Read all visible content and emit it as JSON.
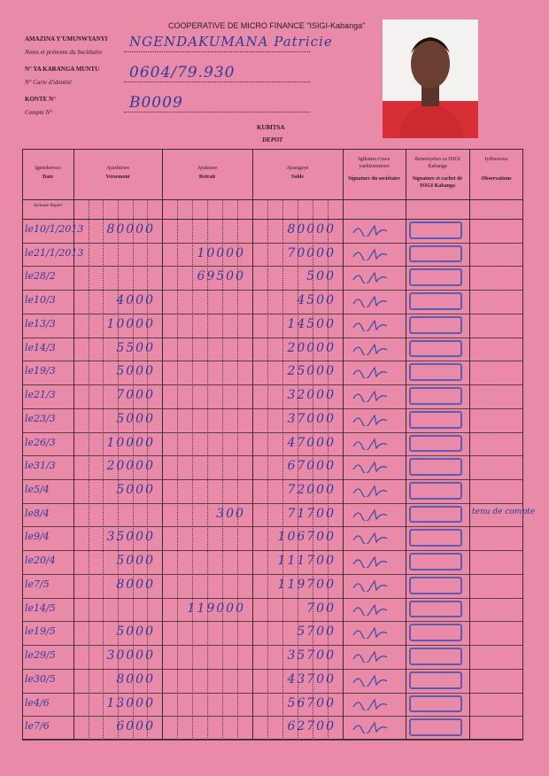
{
  "header": {
    "title": "COOPERATIVE DE MICRO FINANCE \"ISIGI-Kabanga\"",
    "fields": [
      {
        "label": "AMAZINA Y'UMUNWYANYI",
        "sublabel": "Noms et prénoms du Sociétaire",
        "value": "NGENDAKUMANA Patricie"
      },
      {
        "label": "N° YA KARANGA MUNTU",
        "sublabel": "N° Carte d'identité",
        "value": "0604/79.930"
      },
      {
        "label": "KONTE N°",
        "sublabel": "Compte N°",
        "value": "B0009"
      }
    ],
    "section": "KUBITSA",
    "section_fr": "DEPOT"
  },
  "table": {
    "columns": [
      {
        "kirundi": "Igenekerezo",
        "french": "Date"
      },
      {
        "kirundi": "Ayashizwe",
        "french": "Versement"
      },
      {
        "kirundi": "Ayakuwe",
        "french": "Retrait"
      },
      {
        "kirundi": "Ayasigaye",
        "french": "Solde"
      },
      {
        "kirundi": "Igikumu c'uwa yashizwemwo",
        "french": "Signature du sociétaire"
      },
      {
        "kirundi": "Ikimenyetso ca ISIGI Kabanga",
        "french": "Signature et cachet de ISIGI Kabanga"
      },
      {
        "kirundi": "Iyihweswa",
        "french": "Observations"
      }
    ],
    "carry_over": "Ayimaze Report",
    "rows": [
      {
        "date": "le10/1/2013",
        "versement": "80000",
        "solde": "80000"
      },
      {
        "date": "le21/1/2013",
        "retrait": "10000",
        "solde": "70000"
      },
      {
        "date": "le28/2",
        "retrait": "69500",
        "solde": "500"
      },
      {
        "date": "le10/3",
        "versement": "4000",
        "solde": "4500"
      },
      {
        "date": "le13/3",
        "versement": "10000",
        "solde": "14500"
      },
      {
        "date": "le14/3",
        "versement": "5500",
        "solde": "20000"
      },
      {
        "date": "le19/3",
        "versement": "5000",
        "solde": "25000"
      },
      {
        "date": "le21/3",
        "versement": "7000",
        "solde": "32000"
      },
      {
        "date": "le23/3",
        "versement": "5000",
        "solde": "37000"
      },
      {
        "date": "le26/3",
        "versement": "10000",
        "solde": "47000"
      },
      {
        "date": "le31/3",
        "versement": "20000",
        "solde": "67000"
      },
      {
        "date": "le5/4",
        "versement": "5000",
        "solde": "72000"
      },
      {
        "date": "le8/4",
        "retrait": "300",
        "solde": "71700",
        "observations": "tenu de compte"
      },
      {
        "date": "le9/4",
        "versement": "35000",
        "solde": "106700"
      },
      {
        "date": "le20/4",
        "versement": "5000",
        "solde": "111700"
      },
      {
        "date": "le7/5",
        "versement": "8000",
        "solde": "119700"
      },
      {
        "date": "le14/5",
        "retrait": "119000",
        "solde": "700"
      },
      {
        "date": "le19/5",
        "versement": "5000",
        "solde": "5700"
      },
      {
        "date": "le29/5",
        "versement": "30000",
        "solde": "35700"
      },
      {
        "date": "le30/5",
        "versement": "8000",
        "solde": "43700"
      },
      {
        "date": "le4/6",
        "versement": "13000",
        "solde": "56700"
      },
      {
        "date": "le7/6",
        "versement": "6000",
        "solde": "62700"
      }
    ]
  }
}
